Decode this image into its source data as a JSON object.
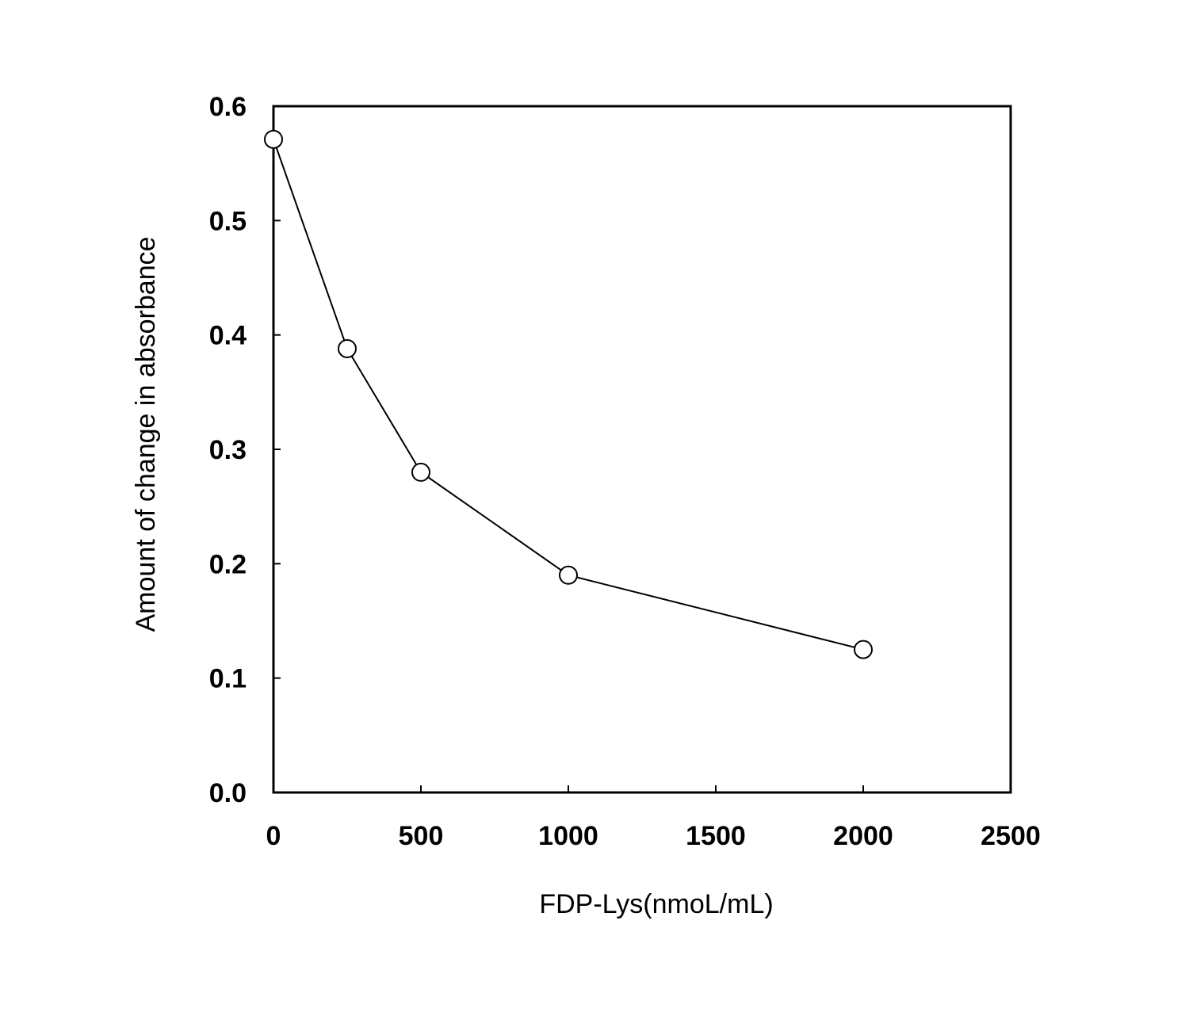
{
  "chart_data": {
    "type": "line",
    "xlabel": "FDP-Lys(nmoL/mL)",
    "ylabel": "Amount of change in absorbance",
    "xlim": [
      0,
      2500
    ],
    "ylim": [
      0,
      0.6
    ],
    "x_ticks": [
      "0",
      "500",
      "1000",
      "1500",
      "2000",
      "2500"
    ],
    "y_ticks": [
      "0.0",
      "0.1",
      "0.2",
      "0.3",
      "0.4",
      "0.5",
      "0.6"
    ],
    "grid": false,
    "legend": "none",
    "marker": "open-circle",
    "series": [
      {
        "x": [
          0,
          250,
          500,
          1000,
          2000
        ],
        "y": [
          0.571,
          0.388,
          0.28,
          0.19,
          0.125
        ]
      }
    ]
  }
}
